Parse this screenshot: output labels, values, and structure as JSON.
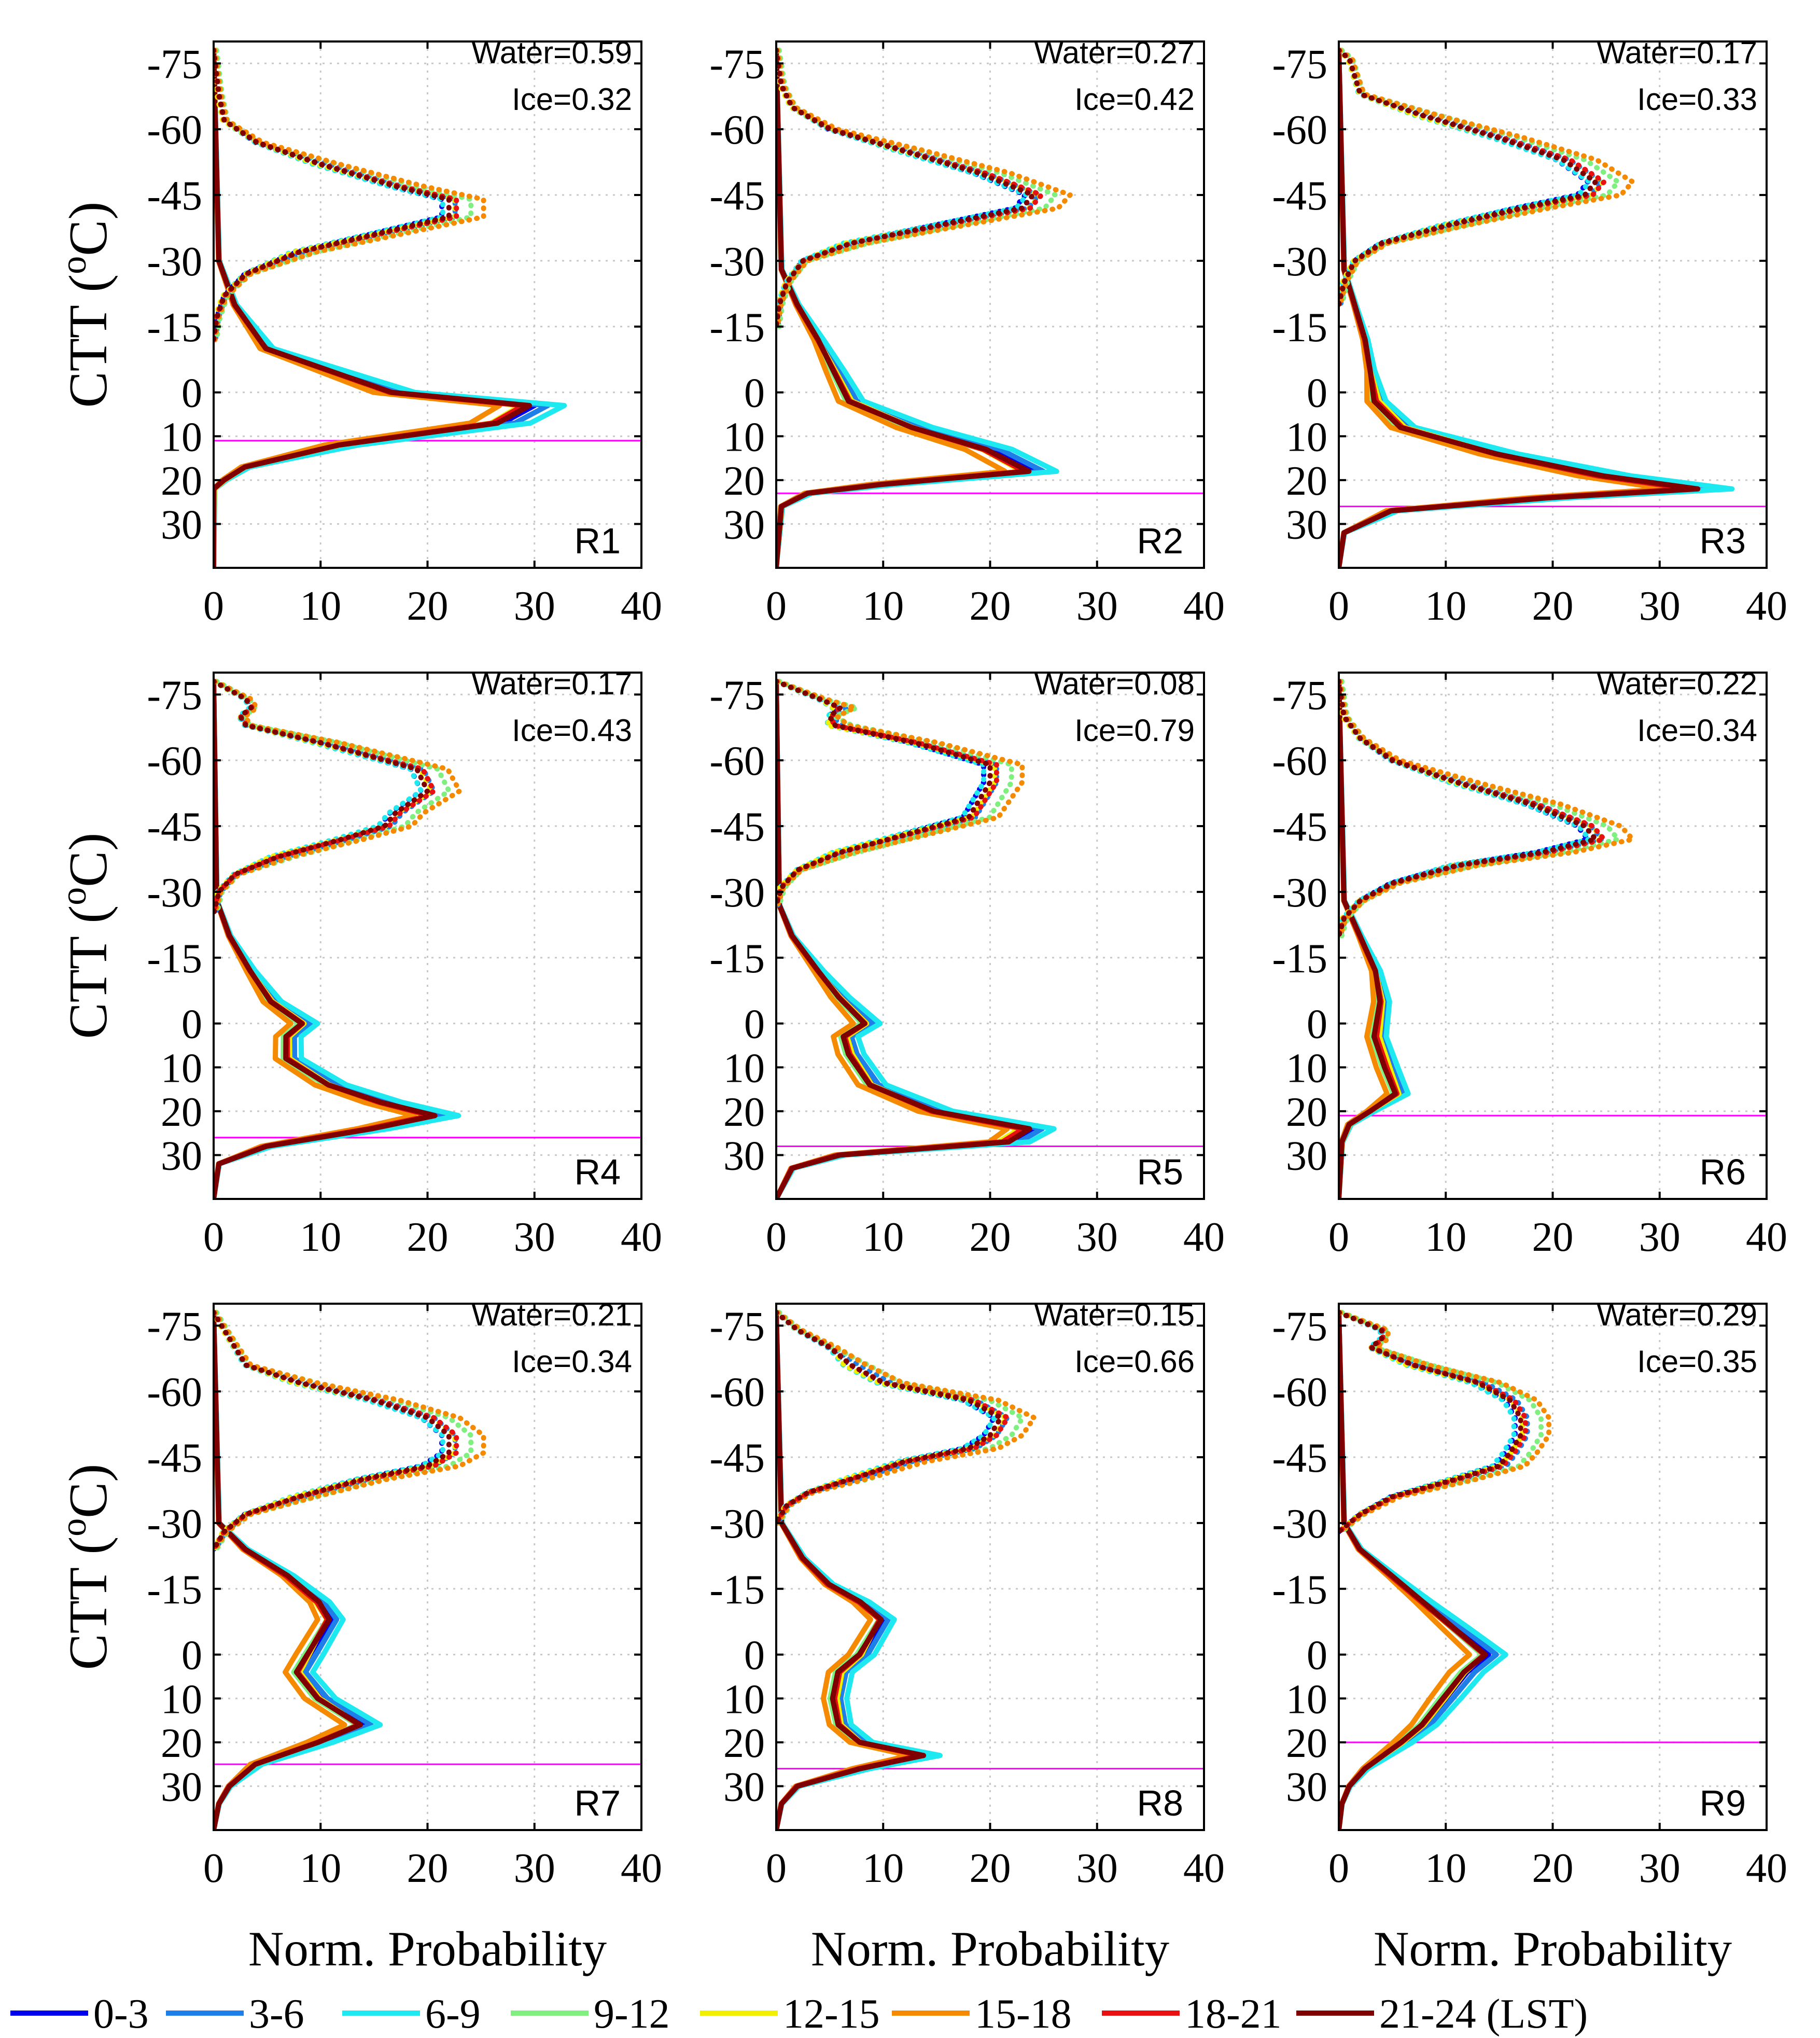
{
  "chart_data": {
    "type": "line",
    "figure_description": "3x3 panels of normalized probability of cloud top temperature for water (solid) and ice (dotted) clouds by local solar time bin",
    "xlabel": "Norm. Probability",
    "ylabel": "CTT (oC)",
    "xlim": [
      0,
      40
    ],
    "ylim_descending": [
      -80,
      40
    ],
    "x_ticks": [
      "0",
      "10",
      "20",
      "30",
      "40"
    ],
    "y_tick_values": [
      -75,
      -60,
      -45,
      -30,
      -15,
      0,
      10,
      20,
      30
    ],
    "y_ticks": [
      "-75",
      "-60",
      "-45",
      "-30",
      "-15",
      "0",
      "10",
      "20",
      "30"
    ],
    "legend": {
      "placement": "bottom",
      "suffix_last": "(LST)",
      "entries": [
        {
          "label": "0-3",
          "color": "#0000ee"
        },
        {
          "label": "3-6",
          "color": "#1e7fe8"
        },
        {
          "label": "6-9",
          "color": "#1ee8f0"
        },
        {
          "label": "9-12",
          "color": "#7ff07f"
        },
        {
          "label": "12-15",
          "color": "#f0f000"
        },
        {
          "label": "15-18",
          "color": "#f58a00"
        },
        {
          "label": "18-21",
          "color": "#e81010"
        },
        {
          "label": "21-24 (LST)",
          "color": "#7f0000"
        }
      ]
    },
    "reference_line_color": "#ff00ff",
    "panels": [
      {
        "id": "R1",
        "water_text": "Water=0.59",
        "ice_text": "Ice=0.32",
        "ref_line": 11,
        "ice_y": [
          -78,
          -68,
          -62,
          -57,
          -52,
          -47,
          -44,
          -40,
          -36,
          -32,
          -27,
          -22,
          -17,
          -12
        ],
        "ice_x": [
          0,
          0.5,
          1,
          4,
          10,
          17,
          22,
          22,
          15,
          8,
          3,
          1,
          0.3,
          0
        ],
        "water_y": [
          -78,
          -30,
          -20,
          -10,
          0,
          3,
          7,
          12,
          17,
          20,
          22,
          40
        ],
        "water_x": [
          0,
          0.5,
          2,
          5,
          17,
          30,
          27,
          12,
          3,
          1,
          0,
          0
        ]
      },
      {
        "id": "R2",
        "water_text": "Water=0.27",
        "ice_text": "Ice=0.42",
        "ref_line": 23,
        "ice_y": [
          -78,
          -70,
          -65,
          -60,
          -55,
          -50,
          -45,
          -42,
          -38,
          -34,
          -30,
          -25,
          -20,
          -15
        ],
        "ice_x": [
          0,
          0.5,
          1.5,
          5,
          12,
          19,
          24,
          23,
          15,
          7,
          2.5,
          1,
          0.3,
          0
        ],
        "water_y": [
          -78,
          -28,
          -20,
          -12,
          -5,
          2,
          8,
          13,
          18,
          21,
          23,
          26,
          40
        ],
        "water_x": [
          0,
          0.5,
          2,
          4,
          5.5,
          7,
          13,
          20,
          24,
          10,
          3,
          0.5,
          0
        ]
      },
      {
        "id": "R3",
        "water_text": "Water=0.17",
        "ice_text": "Ice=0.33",
        "ref_line": 26,
        "ice_y": [
          -78,
          -76,
          -72,
          -68,
          -63,
          -58,
          -53,
          -48,
          -45,
          -42,
          -38,
          -34,
          -30,
          -25,
          -20
        ],
        "ice_x": [
          0,
          1,
          1.5,
          2,
          8,
          15,
          21,
          24,
          23,
          17,
          10,
          4,
          1.5,
          0.5,
          0
        ],
        "water_y": [
          -78,
          -28,
          -20,
          -12,
          -5,
          2,
          8,
          14,
          19,
          22,
          24,
          27,
          32,
          40
        ],
        "water_x": [
          0,
          0.5,
          1.5,
          2.5,
          3,
          3.5,
          6,
          15,
          25,
          34,
          20,
          5,
          0.5,
          0
        ]
      },
      {
        "id": "R4",
        "water_text": "Water=0.17",
        "ice_text": "Ice=0.43",
        "ref_line": 26,
        "ice_y": [
          -78,
          -76,
          -74,
          -72,
          -70,
          -68,
          -64,
          -58,
          -53,
          -48,
          -45,
          -42,
          -38,
          -34,
          -30,
          -25
        ],
        "ice_x": [
          0,
          1.5,
          3,
          3.5,
          2.5,
          3,
          10,
          19,
          20,
          17,
          16,
          12,
          6,
          2,
          0.5,
          0
        ],
        "water_y": [
          -78,
          -28,
          -20,
          -12,
          -5,
          0,
          3,
          8,
          14,
          18,
          21,
          24,
          28,
          32,
          40
        ],
        "water_x": [
          0,
          0.3,
          1.5,
          3.5,
          5.5,
          8.5,
          7,
          7,
          11,
          16,
          21,
          15,
          5,
          0.5,
          0
        ]
      },
      {
        "id": "R5",
        "water_text": "Water=0.08",
        "ice_text": "Ice=0.79",
        "ref_line": 28,
        "ice_y": [
          -78,
          -76,
          -74,
          -72,
          -70,
          -68,
          -64,
          -59,
          -55,
          -51,
          -47,
          -43,
          -39,
          -35,
          -31,
          -27
        ],
        "ice_x": [
          0,
          2,
          4,
          6,
          5,
          5.5,
          13,
          20,
          20,
          19,
          18,
          12,
          6,
          2,
          0.5,
          0
        ],
        "water_y": [
          -78,
          -27,
          -20,
          -12,
          -6,
          0,
          3,
          7,
          14,
          20,
          24,
          27,
          30,
          33,
          40
        ],
        "water_x": [
          0,
          0.3,
          1.5,
          4,
          6,
          8.5,
          6.5,
          7,
          9,
          15,
          24,
          22,
          6,
          1.5,
          0
        ]
      },
      {
        "id": "R6",
        "water_text": "Water=0.22",
        "ice_text": "Ice=0.34",
        "ref_line": 21,
        "ice_y": [
          -78,
          -70,
          -65,
          -60,
          -55,
          -50,
          -45,
          -42,
          -39,
          -36,
          -32,
          -28,
          -24,
          -20
        ],
        "ice_x": [
          0,
          0.5,
          2,
          5,
          11,
          18,
          23,
          24,
          19,
          11,
          5,
          2,
          0.5,
          0
        ],
        "water_y": [
          -78,
          -28,
          -20,
          -12,
          -5,
          3,
          10,
          16,
          20,
          23,
          27,
          40
        ],
        "water_x": [
          0,
          0.5,
          2,
          3.5,
          4,
          3.5,
          4.5,
          5.5,
          3,
          1,
          0.3,
          0
        ]
      },
      {
        "id": "R7",
        "water_text": "Water=0.21",
        "ice_text": "Ice=0.34",
        "ref_line": 25,
        "ice_y": [
          -78,
          -74,
          -70,
          -66,
          -62,
          -58,
          -54,
          -50,
          -46,
          -43,
          -40,
          -36,
          -32,
          -28,
          -24
        ],
        "ice_x": [
          0,
          1,
          2,
          3,
          8,
          15,
          20,
          22,
          22,
          20,
          14,
          8,
          3,
          1,
          0
        ],
        "water_y": [
          -78,
          -30,
          -24,
          -18,
          -12,
          -8,
          0,
          4,
          10,
          16,
          20,
          25,
          30,
          34,
          40
        ],
        "water_x": [
          0,
          0.5,
          3,
          7,
          10,
          11,
          9,
          8,
          10,
          14,
          10,
          4,
          1.5,
          0.5,
          0
        ]
      },
      {
        "id": "R8",
        "water_text": "Water=0.15",
        "ice_text": "Ice=0.66",
        "ref_line": 26,
        "ice_y": [
          -78,
          -74,
          -70,
          -66,
          -62,
          -58,
          -54,
          -50,
          -47,
          -44,
          -40,
          -37,
          -34,
          -30
        ],
        "ice_x": [
          0,
          2,
          5,
          7,
          10,
          18,
          21,
          20,
          18,
          12,
          7,
          3,
          1,
          0
        ],
        "water_y": [
          -78,
          -30,
          -22,
          -16,
          -12,
          -8,
          0,
          4,
          10,
          16,
          20,
          23,
          26,
          30,
          34,
          40
        ],
        "water_x": [
          0,
          0.5,
          2.5,
          5,
          8,
          10,
          8,
          6,
          5.5,
          6,
          8,
          14,
          8,
          2,
          0.5,
          0
        ]
      },
      {
        "id": "R9",
        "water_text": "Water=0.29",
        "ice_text": "Ice=0.35",
        "ref_line": 20,
        "ice_y": [
          -78,
          -76,
          -74,
          -72,
          -70,
          -66,
          -62,
          -58,
          -54,
          -50,
          -46,
          -43,
          -40,
          -36,
          -32,
          -28
        ],
        "ice_x": [
          0,
          2,
          4,
          4,
          3,
          7,
          13,
          16,
          17,
          17,
          16,
          15,
          11,
          5,
          2,
          0
        ],
        "water_y": [
          -78,
          -30,
          -24,
          -18,
          -12,
          -6,
          0,
          4,
          10,
          16,
          20,
          26,
          30,
          34,
          40
        ],
        "water_x": [
          0,
          0.5,
          2,
          5,
          8,
          11,
          14,
          12,
          10,
          8,
          6,
          2.5,
          1,
          0.3,
          0
        ]
      }
    ]
  }
}
